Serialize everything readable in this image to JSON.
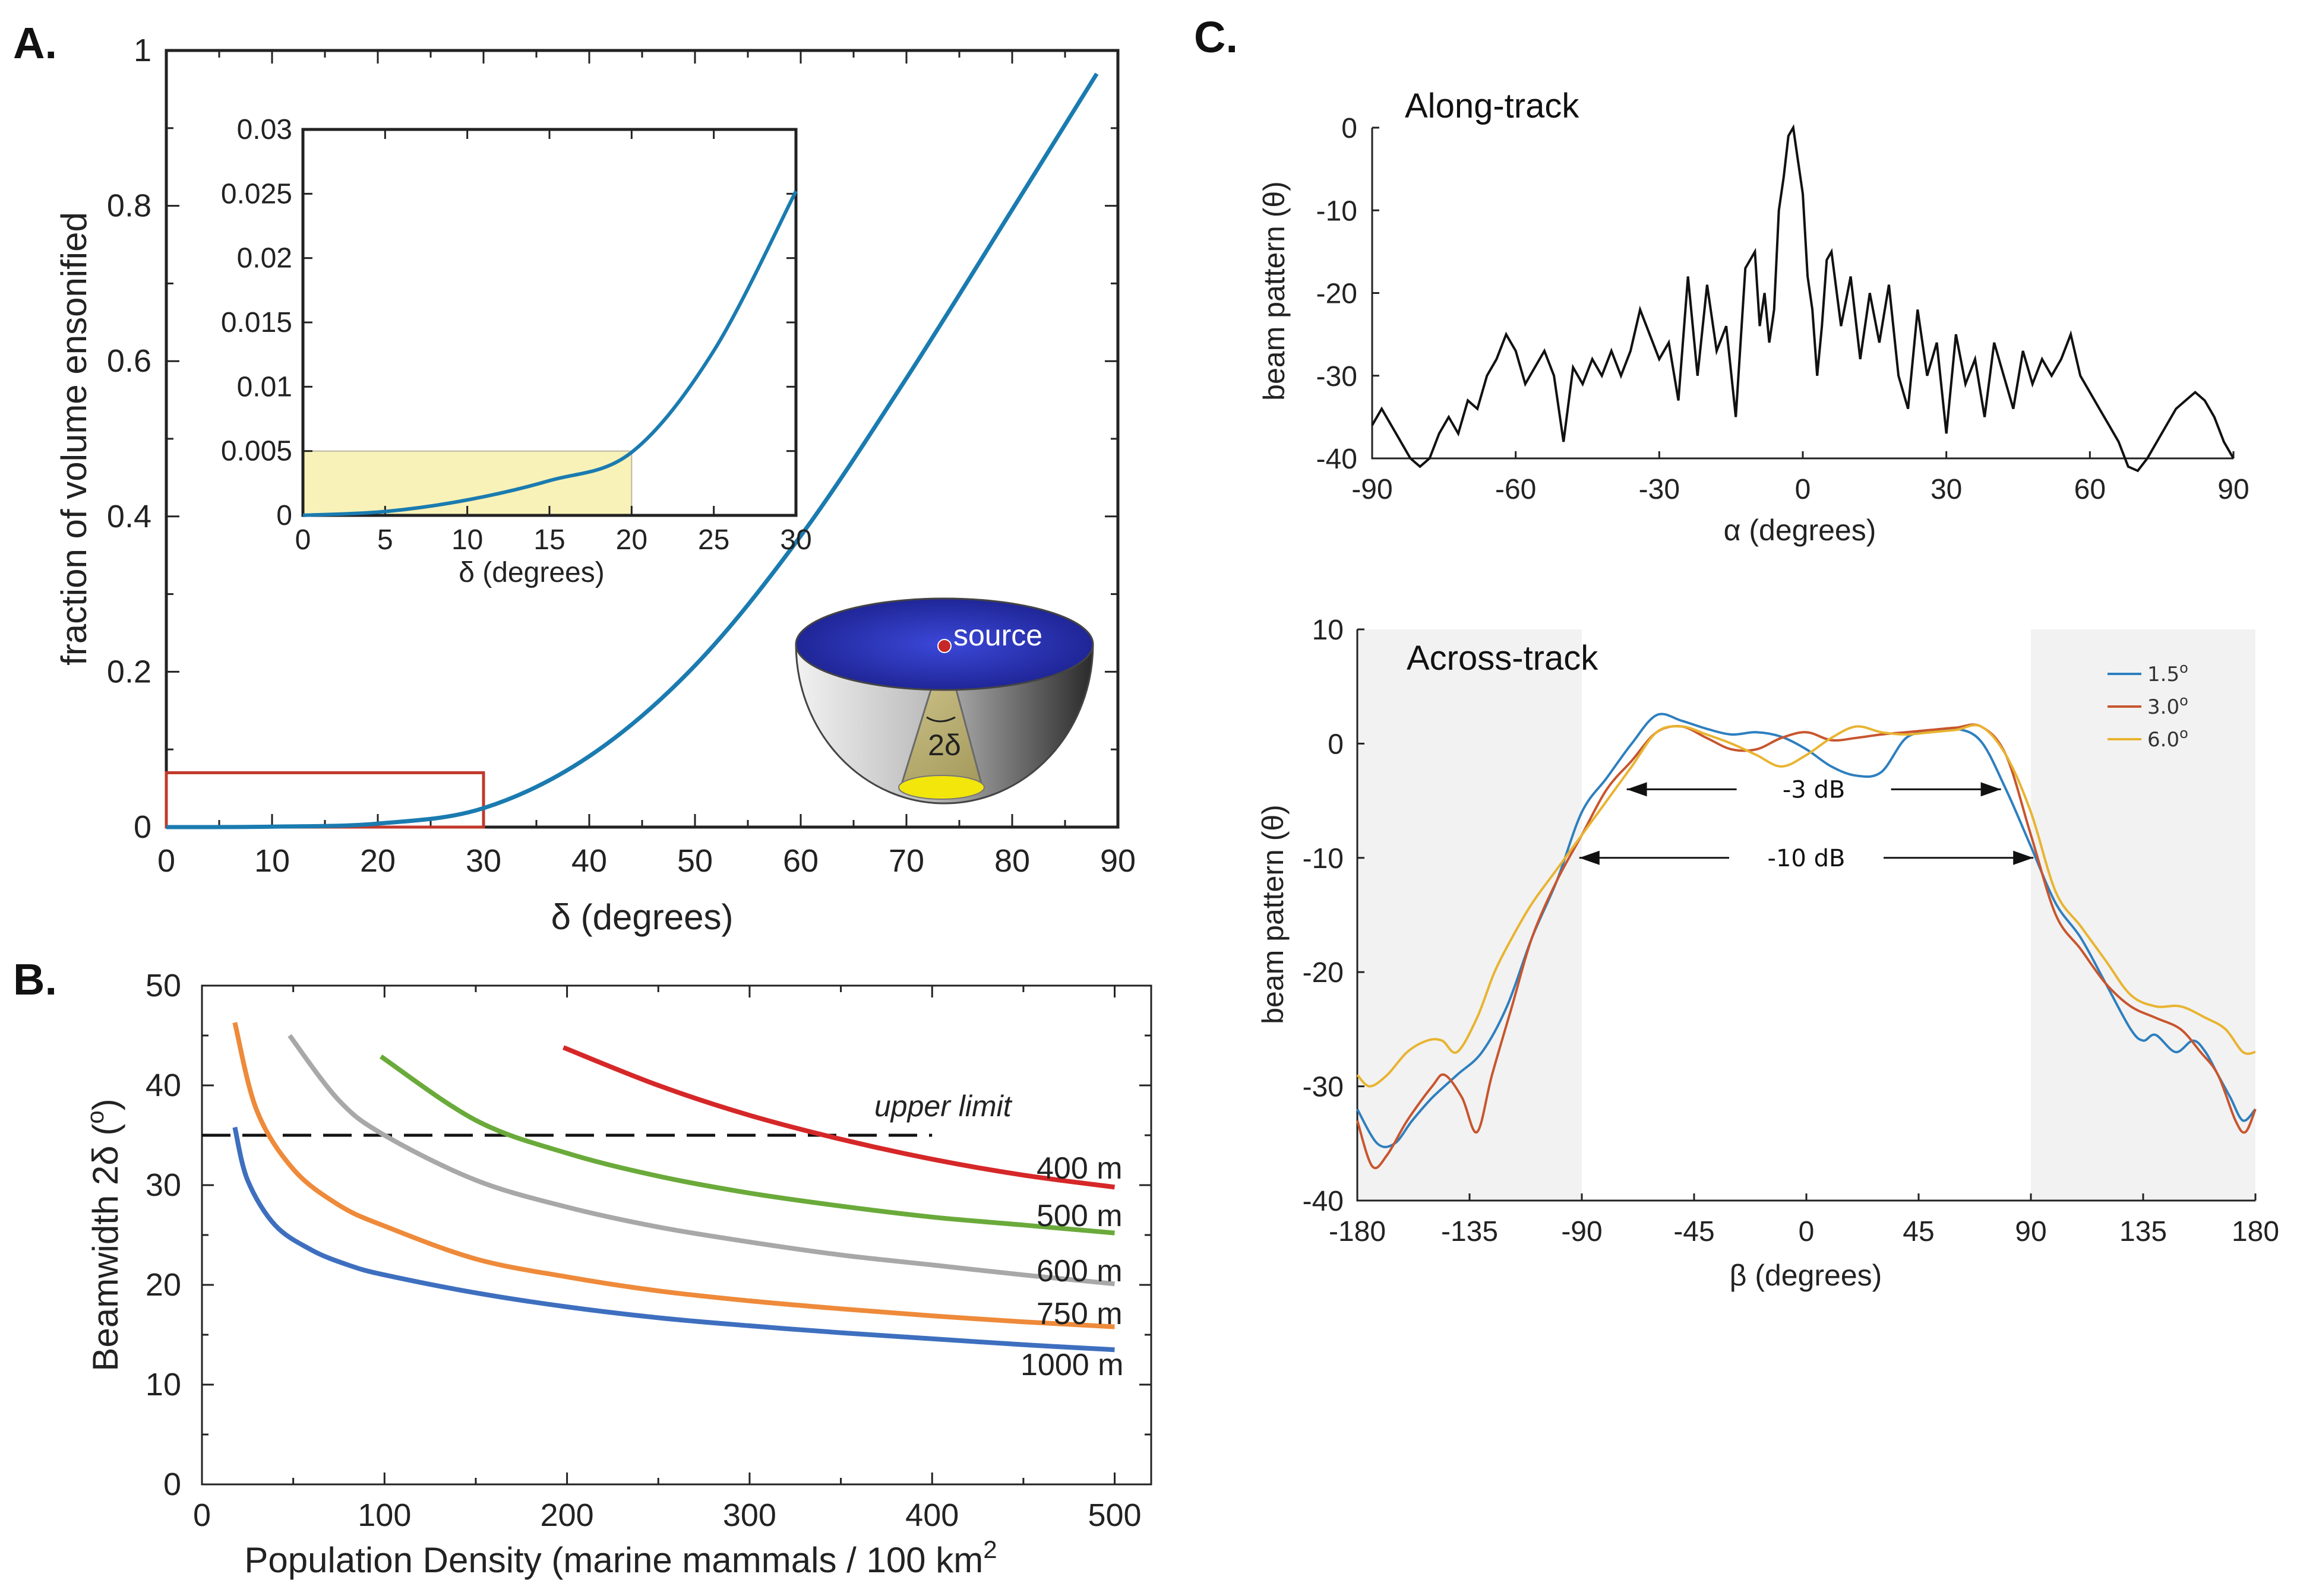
{
  "panels": {
    "a": "A.",
    "b": "B.",
    "c": "C."
  },
  "chart_data": [
    {
      "id": "A-main",
      "type": "line",
      "xlabel": "δ (degrees)",
      "ylabel": "fraction of volume ensonified",
      "xlim": [
        0,
        90
      ],
      "ylim": [
        0,
        1
      ],
      "xticks": [
        0,
        10,
        20,
        30,
        40,
        50,
        60,
        70,
        80,
        90
      ],
      "yticks": [
        0,
        0.2,
        0.4,
        0.6,
        0.8,
        1
      ],
      "ytick_labels": [
        "0",
        "0.2",
        "0.4",
        "0.6",
        "0.8",
        "1"
      ],
      "series": [
        {
          "name": "volume fraction",
          "color": "#1a7bb0",
          "x": [
            0,
            10,
            20,
            30,
            40,
            50,
            60,
            70,
            80,
            88
          ],
          "y": [
            0,
            0.0006,
            0.0045,
            0.0244,
            0.0912,
            0.208,
            0.375,
            0.578,
            0.795,
            0.97
          ]
        }
      ],
      "highlight_box": {
        "x": [
          0,
          30
        ],
        "y": [
          0,
          0.07
        ],
        "color": "#c0392b"
      },
      "inset": {
        "xlabel": "δ (degrees)",
        "xlim": [
          0,
          30
        ],
        "ylim": [
          0,
          0.03
        ],
        "xticks": [
          0,
          5,
          10,
          15,
          20,
          25,
          30
        ],
        "yticks": [
          0,
          0.005,
          0.01,
          0.015,
          0.02,
          0.025,
          0.03
        ],
        "ytick_labels": [
          "0",
          "0.005",
          "0.01",
          "0.015",
          "0.02",
          "0.025",
          "0.03"
        ],
        "shaded_region": {
          "x": [
            0,
            20
          ],
          "y": [
            0,
            0.005
          ],
          "color": "#f8f2b8"
        },
        "x": [
          0,
          5,
          10,
          15,
          20,
          25,
          30
        ],
        "y": [
          0,
          0.0003,
          0.0012,
          0.0027,
          0.0049,
          0.0128,
          0.0252
        ]
      },
      "diagram": {
        "source_label": "source",
        "beam_label": "2δ"
      }
    },
    {
      "id": "B",
      "type": "line",
      "xlabel": "Population Density (marine mammals / 100 km",
      "xlabel_sup": "2",
      "ylabel": "Beamwidth 2δ (",
      "ylabel_sup": "o",
      "ylabel_end": ")",
      "xlim": [
        0,
        520
      ],
      "ylim": [
        0,
        50
      ],
      "xticks": [
        0,
        100,
        200,
        300,
        400,
        500
      ],
      "yticks": [
        0,
        10,
        20,
        30,
        40,
        50
      ],
      "upper_limit": {
        "y": 35,
        "x": [
          0,
          400
        ],
        "label": "upper limit"
      },
      "series": [
        {
          "name": "400 m",
          "color": "#d62728",
          "x": [
            198,
            250,
            300,
            350,
            400,
            450,
            500
          ],
          "y": [
            43.8,
            40.0,
            37.0,
            34.6,
            32.6,
            31.0,
            29.8
          ]
        },
        {
          "name": "500 m",
          "color": "#6aaa3a",
          "x": [
            98,
            150,
            200,
            250,
            300,
            350,
            400,
            450,
            500
          ],
          "y": [
            42.9,
            36.5,
            33.2,
            30.9,
            29.2,
            27.9,
            26.8,
            26.0,
            25.2
          ]
        },
        {
          "name": "600 m",
          "color": "#a8a8a8",
          "x": [
            48,
            75,
            100,
            150,
            200,
            250,
            300,
            350,
            400,
            450,
            500
          ],
          "y": [
            45.0,
            38.5,
            35.0,
            30.5,
            27.8,
            25.8,
            24.3,
            23.0,
            22.0,
            21.0,
            20.1
          ]
        },
        {
          "name": "750 m",
          "color": "#ee8a3a",
          "x": [
            18,
            30,
            50,
            75,
            100,
            150,
            200,
            250,
            300,
            350,
            400,
            450,
            500
          ],
          "y": [
            46.3,
            37.5,
            31.6,
            28.0,
            25.9,
            22.6,
            20.8,
            19.4,
            18.4,
            17.6,
            16.9,
            16.3,
            15.8
          ]
        },
        {
          "name": "1000 m",
          "color": "#3e6fbf",
          "x": [
            18,
            25,
            40,
            60,
            80,
            100,
            150,
            200,
            250,
            300,
            350,
            400,
            450,
            500
          ],
          "y": [
            35.8,
            30.5,
            26.0,
            23.5,
            22.0,
            21.0,
            19.2,
            17.8,
            16.7,
            15.9,
            15.2,
            14.6,
            14.0,
            13.5
          ]
        }
      ]
    },
    {
      "id": "C-along",
      "type": "line",
      "title": "Along-track",
      "xlabel": "α (degrees)",
      "ylabel": "beam pattern (θ)",
      "xlim": [
        -90,
        90
      ],
      "ylim": [
        -40,
        0
      ],
      "xticks": [
        -90,
        -60,
        -30,
        0,
        30,
        60,
        90
      ],
      "yticks": [
        -40,
        -30,
        -20,
        -10,
        0
      ],
      "series": [
        {
          "name": "along-track",
          "color": "#111111",
          "x": [
            -90,
            -88,
            -85,
            -82,
            -80,
            -78,
            -76,
            -74,
            -72,
            -70,
            -68,
            -66,
            -64,
            -62,
            -60,
            -58,
            -56,
            -54,
            -52,
            -50,
            -48,
            -46,
            -44,
            -42,
            -40,
            -38,
            -36,
            -34,
            -32,
            -30,
            -28,
            -26,
            -24,
            -22,
            -20,
            -18,
            -16,
            -14,
            -12,
            -10,
            -9,
            -8,
            -7,
            -6,
            -5,
            -4,
            -3,
            -2,
            -1,
            0,
            1,
            2,
            3,
            4,
            5,
            6,
            8,
            10,
            12,
            14,
            16,
            18,
            20,
            22,
            24,
            26,
            28,
            30,
            32,
            34,
            36,
            38,
            40,
            42,
            44,
            46,
            48,
            50,
            52,
            54,
            56,
            58,
            60,
            62,
            64,
            66,
            68,
            70,
            72,
            74,
            76,
            78,
            80,
            82,
            84,
            86,
            88,
            90
          ],
          "y": [
            -36,
            -34,
            -37,
            -40,
            -41,
            -40,
            -37,
            -35,
            -37,
            -33,
            -34,
            -30,
            -28,
            -25,
            -27,
            -31,
            -29,
            -27,
            -30,
            -38,
            -29,
            -31,
            -28,
            -30,
            -27,
            -30,
            -27,
            -22,
            -25,
            -28,
            -26,
            -33,
            -18,
            -30,
            -19,
            -27,
            -24,
            -35,
            -17,
            -15,
            -24,
            -20,
            -26,
            -22,
            -10,
            -6,
            -1,
            0,
            -4,
            -8,
            -18,
            -22,
            -30,
            -24,
            -16,
            -15,
            -24,
            -18,
            -28,
            -20,
            -26,
            -19,
            -30,
            -34,
            -22,
            -30,
            -26,
            -37,
            -25,
            -31,
            -28,
            -35,
            -26,
            -30,
            -34,
            -27,
            -31,
            -28,
            -30,
            -28,
            -25,
            -30,
            -32,
            -34,
            -36,
            -38,
            -41,
            -42,
            -40,
            -38,
            -36,
            -34,
            -33,
            -32,
            -33,
            -35,
            -38,
            -40
          ]
        }
      ]
    },
    {
      "id": "C-across",
      "type": "line",
      "title": "Across-track",
      "xlabel": "β  (degrees)",
      "ylabel": "beam pattern (θ)",
      "xlim": [
        -180,
        180
      ],
      "ylim": [
        -40,
        10
      ],
      "xticks": [
        -180,
        -135,
        -90,
        -45,
        0,
        45,
        90,
        135,
        180
      ],
      "yticks": [
        -40,
        -30,
        -20,
        -10,
        0,
        10
      ],
      "shaded_x": [
        [
          -180,
          -90
        ],
        [
          90,
          180
        ]
      ],
      "annotations": [
        {
          "label": "-3 dB",
          "x": [
            -72,
            78
          ],
          "y": -4
        },
        {
          "label": "-10 dB",
          "x": [
            -91,
            91
          ],
          "y": -10
        }
      ],
      "legend": {
        "position": "top-right",
        "base": [
          "1.5",
          "3.0",
          "6.0"
        ],
        "sup": "o"
      },
      "series": [
        {
          "name": "1.5°",
          "color": "#2e7fbf",
          "x": [
            -180,
            -172,
            -165,
            -158,
            -150,
            -140,
            -130,
            -120,
            -110,
            -100,
            -90,
            -80,
            -70,
            -60,
            -50,
            -40,
            -30,
            -20,
            -10,
            0,
            10,
            20,
            30,
            40,
            50,
            60,
            70,
            80,
            90,
            100,
            110,
            120,
            130,
            135,
            140,
            148,
            155,
            160,
            165,
            170,
            175,
            180
          ],
          "y": [
            -32,
            -35,
            -35,
            -33,
            -31,
            -29,
            -27,
            -23,
            -17,
            -12,
            -6,
            -3,
            0,
            2.5,
            2,
            1.3,
            0.8,
            1,
            0.6,
            -0.5,
            -2,
            -2.8,
            -2.5,
            0.5,
            1,
            1.3,
            0.2,
            -4,
            -9,
            -14,
            -17,
            -21,
            -25,
            -26,
            -25.5,
            -27,
            -26,
            -27,
            -29,
            -31,
            -33,
            -32
          ]
        },
        {
          "name": "3.0°",
          "color": "#c8552e",
          "x": [
            -180,
            -174,
            -168,
            -160,
            -150,
            -145,
            -138,
            -132,
            -126,
            -118,
            -110,
            -100,
            -90,
            -80,
            -70,
            -60,
            -50,
            -40,
            -30,
            -20,
            -10,
            0,
            10,
            20,
            30,
            40,
            50,
            60,
            70,
            80,
            90,
            100,
            110,
            120,
            130,
            140,
            150,
            158,
            165,
            172,
            176,
            180
          ],
          "y": [
            -33,
            -37,
            -36,
            -33,
            -30,
            -29,
            -31,
            -34,
            -29,
            -23,
            -17,
            -12,
            -8,
            -4,
            -1.5,
            1,
            1.5,
            0.5,
            -0.5,
            -0.5,
            0.5,
            1,
            0.3,
            0.5,
            0.8,
            1,
            1.2,
            1.4,
            1.5,
            -1,
            -8,
            -15,
            -18,
            -21,
            -23,
            -24,
            -25,
            -27,
            -29,
            -33,
            -34,
            -32
          ]
        },
        {
          "name": "6.0°",
          "color": "#e8b430",
          "x": [
            -180,
            -175,
            -168,
            -160,
            -152,
            -146,
            -140,
            -132,
            -125,
            -118,
            -110,
            -100,
            -90,
            -80,
            -70,
            -60,
            -50,
            -40,
            -30,
            -20,
            -10,
            0,
            10,
            20,
            30,
            40,
            50,
            60,
            70,
            80,
            90,
            100,
            110,
            120,
            130,
            140,
            150,
            160,
            168,
            175,
            180
          ],
          "y": [
            -29,
            -30,
            -29,
            -27,
            -26,
            -26,
            -27,
            -24,
            -20,
            -17,
            -14,
            -11,
            -8,
            -5,
            -2,
            1,
            1.5,
            0.8,
            0,
            -1,
            -2,
            -1,
            0.5,
            1.5,
            1,
            0.8,
            1,
            1.2,
            1.5,
            -1,
            -6,
            -13,
            -16,
            -19,
            -22,
            -23,
            -23,
            -24,
            -25,
            -27,
            -27
          ]
        }
      ]
    }
  ]
}
